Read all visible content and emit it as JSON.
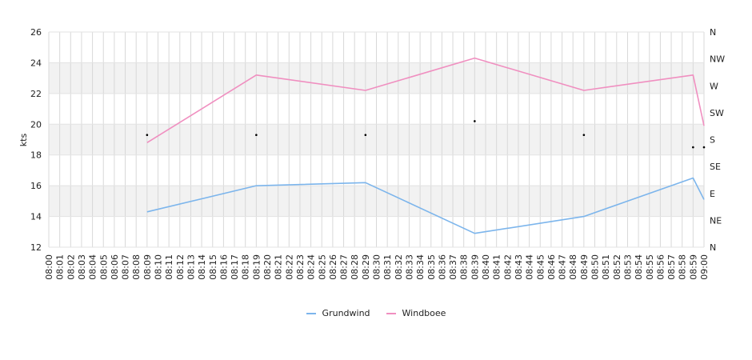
{
  "chart_data": {
    "type": "line",
    "ylabel": "kts",
    "ylim": [
      12,
      26
    ],
    "y_ticks": [
      "12",
      "14",
      "16",
      "18",
      "20",
      "22",
      "24",
      "26"
    ],
    "y2_ticks": [
      "N",
      "NE",
      "E",
      "SE",
      "S",
      "SW",
      "W",
      "NW",
      "N"
    ],
    "grid": true,
    "legend_position": "bottom",
    "x": [
      "08:00",
      "08:01",
      "08:02",
      "08:03",
      "08:04",
      "08:05",
      "08:06",
      "08:07",
      "08:08",
      "08:09",
      "08:10",
      "08:11",
      "08:12",
      "08:13",
      "08:14",
      "08:15",
      "08:16",
      "08:17",
      "08:18",
      "08:19",
      "08:20",
      "08:21",
      "08:22",
      "08:23",
      "08:24",
      "08:25",
      "08:26",
      "08:27",
      "08:28",
      "08:29",
      "08:30",
      "08:31",
      "08:32",
      "08:33",
      "08:34",
      "08:35",
      "08:36",
      "08:37",
      "08:38",
      "08:39",
      "08:40",
      "08:41",
      "08:42",
      "08:43",
      "08:44",
      "08:45",
      "08:46",
      "08:47",
      "08:48",
      "08:49",
      "08:50",
      "08:51",
      "08:52",
      "08:53",
      "08:54",
      "08:55",
      "08:56",
      "08:57",
      "08:58",
      "08:59",
      "09:00"
    ],
    "series": [
      {
        "name": "Grundwind",
        "color": "#7cb5ec",
        "points": [
          [
            "08:09",
            14.3
          ],
          [
            "08:19",
            16.0
          ],
          [
            "08:29",
            16.2
          ],
          [
            "08:39",
            12.9
          ],
          [
            "08:49",
            14.0
          ],
          [
            "08:59",
            16.5
          ],
          [
            "09:00",
            15.1
          ]
        ]
      },
      {
        "name": "Windboee",
        "color": "#f08fc0",
        "points": [
          [
            "08:09",
            18.8
          ],
          [
            "08:19",
            23.2
          ],
          [
            "08:29",
            22.2
          ],
          [
            "08:39",
            24.3
          ],
          [
            "08:49",
            22.2
          ],
          [
            "08:59",
            23.2
          ],
          [
            "09:00",
            19.9
          ]
        ]
      }
    ],
    "direction_markers": [
      [
        "08:09",
        19.3
      ],
      [
        "08:19",
        19.3
      ],
      [
        "08:29",
        19.3
      ],
      [
        "08:39",
        20.2
      ],
      [
        "08:49",
        19.3
      ],
      [
        "08:59",
        18.5
      ],
      [
        "09:00",
        18.5
      ]
    ]
  }
}
